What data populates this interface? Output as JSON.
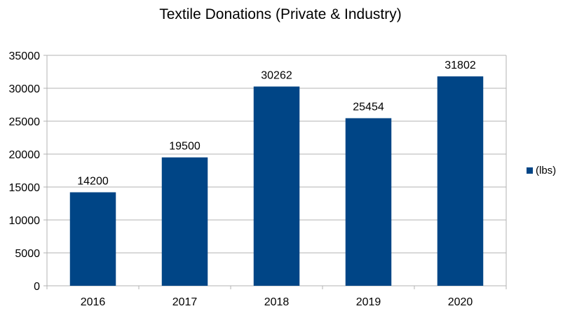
{
  "chart_data": {
    "type": "bar",
    "title": "Textile Donations (Private & Industry)",
    "xlabel": "",
    "ylabel": "",
    "categories": [
      "2016",
      "2017",
      "2018",
      "2019",
      "2020"
    ],
    "series": [
      {
        "name": "(lbs)",
        "values": [
          14200,
          19500,
          30262,
          25454,
          31802
        ]
      }
    ],
    "ylim": [
      0,
      35000
    ],
    "yticks": [
      0,
      5000,
      10000,
      15000,
      20000,
      25000,
      30000,
      35000
    ],
    "data_labels": [
      "14200",
      "19500",
      "30262",
      "25454",
      "31802"
    ],
    "grid": true,
    "legend_position": "right",
    "colors": {
      "bar": "#004586",
      "grid": "#b3b3b3",
      "axis": "#b3b3b3"
    }
  }
}
